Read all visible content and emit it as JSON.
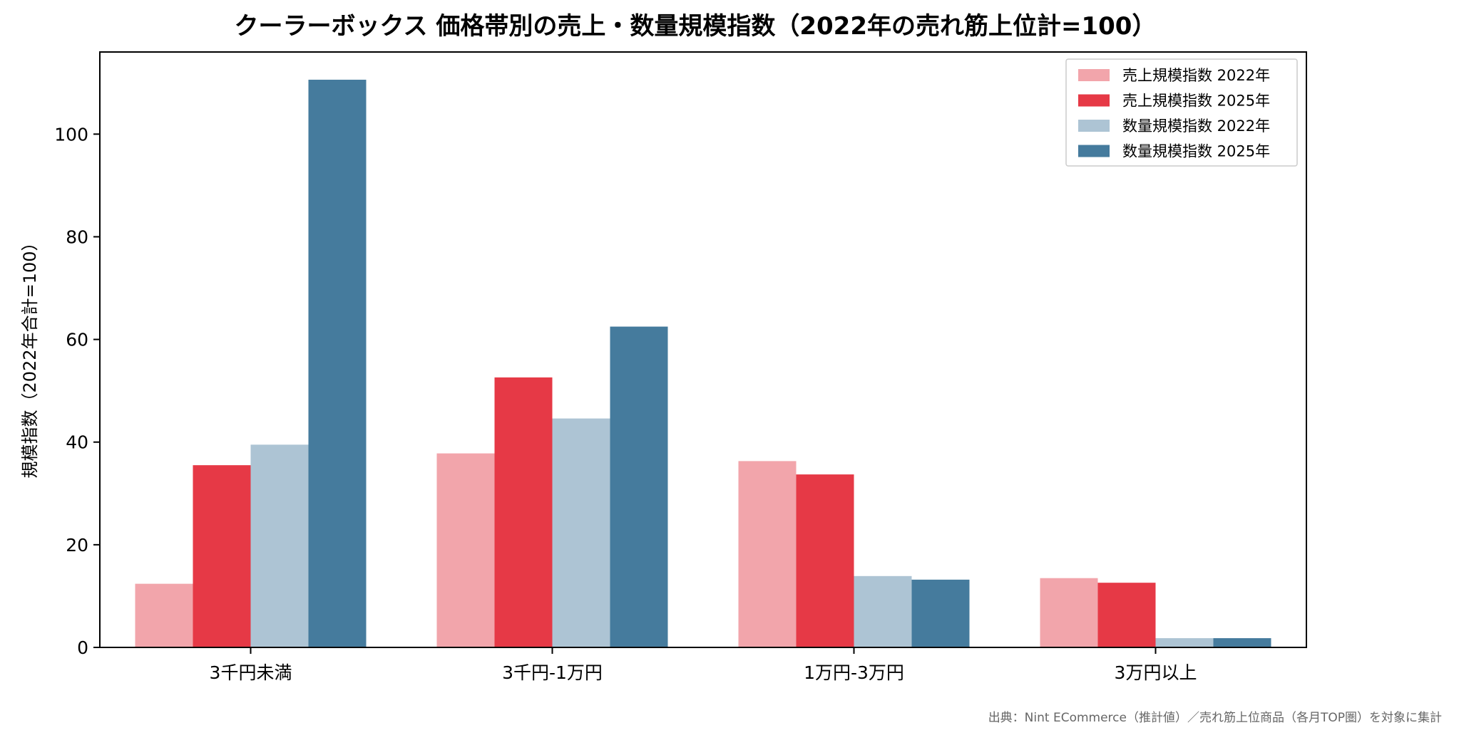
{
  "chart_data": {
    "type": "bar",
    "title": "クーラーボックス 価格帯別の売上・数量規模指数（2022年の売れ筋上位計=100）",
    "ylabel": "規模指数（2022年合計=100）",
    "xlabel": "",
    "categories": [
      "3千円未満",
      "3千円-1万円",
      "1万円-3万円",
      "3万円以上"
    ],
    "series": [
      {
        "name": "売上規模指数 2022年",
        "color": "#f2a5ab",
        "values": [
          12.4,
          37.8,
          36.3,
          13.5
        ]
      },
      {
        "name": "売上規模指数 2025年",
        "color": "#e63946",
        "values": [
          35.5,
          52.6,
          33.7,
          12.6
        ]
      },
      {
        "name": "数量規模指数 2022年",
        "color": "#adc4d4",
        "values": [
          39.5,
          44.6,
          13.9,
          1.8
        ]
      },
      {
        "name": "数量規模指数 2025年",
        "color": "#457b9d",
        "values": [
          110.6,
          62.5,
          13.2,
          1.8
        ]
      }
    ],
    "ylim": [
      0,
      116
    ],
    "yticks": [
      0,
      20,
      40,
      60,
      80,
      100
    ],
    "grid": false,
    "legend_position": "top-right",
    "source": "出典：Nint ECommerce（推計値）／売れ筋上位商品（各月TOP圏）を対象に集計"
  }
}
